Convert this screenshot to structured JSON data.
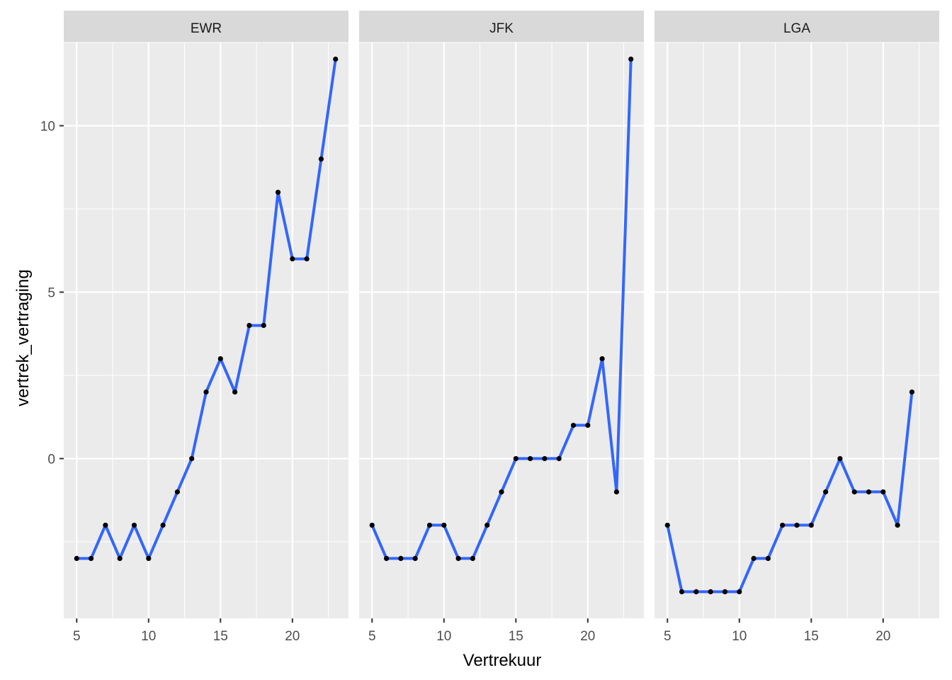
{
  "chart_data": {
    "type": "line",
    "markers": true,
    "facet_by": "origin",
    "xlabel": "Vertrekuur",
    "ylabel": "vertrek_vertraging",
    "xlim": [
      4.1,
      23.9
    ],
    "ylim": [
      -4.8,
      12.5
    ],
    "x_ticks": [
      5,
      10,
      15,
      20
    ],
    "y_ticks": [
      0,
      5,
      10
    ],
    "x_minor_grid": [
      7.5,
      12.5,
      17.5,
      22.5
    ],
    "y_minor_grid": [
      -2.5,
      2.5,
      7.5,
      12.5
    ],
    "grid": true,
    "colors": {
      "line": "#3366ff",
      "point": "#000000",
      "panel_background": "#ebebeb",
      "strip_background": "#d9d9d9",
      "grid": "#ffffff"
    },
    "panels": [
      {
        "name": "EWR",
        "x": [
          5,
          6,
          7,
          8,
          9,
          10,
          11,
          12,
          13,
          14,
          15,
          16,
          17,
          18,
          19,
          20,
          21,
          22,
          23
        ],
        "y": [
          -3,
          -3,
          -2,
          -3,
          -2,
          -3,
          -2,
          -1,
          0,
          2,
          3,
          2,
          4,
          4,
          8,
          6,
          6,
          9,
          12
        ]
      },
      {
        "name": "JFK",
        "x": [
          5,
          6,
          7,
          8,
          9,
          10,
          11,
          12,
          13,
          14,
          15,
          16,
          17,
          18,
          19,
          20,
          21,
          22,
          23
        ],
        "y": [
          -2,
          -3,
          -3,
          -3,
          -2,
          -2,
          -3,
          -3,
          -2,
          -1,
          0,
          0,
          0,
          0,
          1,
          1,
          3,
          -1,
          12
        ]
      },
      {
        "name": "LGA",
        "x": [
          5,
          6,
          7,
          8,
          9,
          10,
          11,
          12,
          13,
          14,
          15,
          16,
          17,
          18,
          19,
          20,
          21,
          22
        ],
        "y": [
          -2,
          -4,
          -4,
          -4,
          -4,
          -4,
          -3,
          -3,
          -2,
          -2,
          -2,
          -1,
          0,
          -1,
          -1,
          -1,
          -2,
          2
        ]
      }
    ]
  }
}
